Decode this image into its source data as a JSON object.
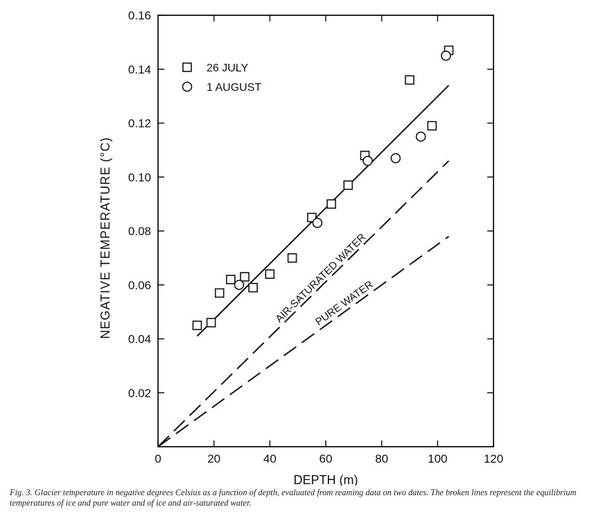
{
  "chart_data": {
    "type": "scatter",
    "title": "",
    "xlabel": "DEPTH (m)",
    "ylabel": "NEGATIVE TEMPERATURE (°C)",
    "xlim": [
      0,
      120
    ],
    "ylim": [
      0,
      0.16
    ],
    "xticks": [
      0,
      20,
      40,
      60,
      80,
      100,
      120
    ],
    "yticks": [
      0.02,
      0.04,
      0.06,
      0.08,
      0.1,
      0.12,
      0.14,
      0.16
    ],
    "ytick_labels": [
      "0.02",
      "0.04",
      "0.06",
      "0.08",
      "0.10",
      "0.12",
      "0.14",
      "0.16"
    ],
    "grid": false,
    "legend_position": "top-left",
    "series": [
      {
        "name": "26 JULY",
        "marker": "square",
        "points": [
          [
            14,
            0.045
          ],
          [
            19,
            0.046
          ],
          [
            22,
            0.057
          ],
          [
            26,
            0.062
          ],
          [
            31,
            0.063
          ],
          [
            34,
            0.059
          ],
          [
            40,
            0.064
          ],
          [
            48,
            0.07
          ],
          [
            55,
            0.085
          ],
          [
            62,
            0.09
          ],
          [
            68,
            0.097
          ],
          [
            74,
            0.108
          ],
          [
            90,
            0.136
          ],
          [
            98,
            0.119
          ],
          [
            104,
            0.147
          ]
        ]
      },
      {
        "name": "1 AUGUST",
        "marker": "circle",
        "points": [
          [
            29,
            0.06
          ],
          [
            57,
            0.083
          ],
          [
            75,
            0.106
          ],
          [
            85,
            0.107
          ],
          [
            94,
            0.115
          ],
          [
            103,
            0.145
          ]
        ]
      }
    ],
    "lines": [
      {
        "style": "solid",
        "from": [
          14,
          0.041
        ],
        "to": [
          104,
          0.134
        ]
      },
      {
        "style": "dashed",
        "label": "AIR-SATURATED WATER",
        "from": [
          0,
          0
        ],
        "to": [
          104,
          0.106
        ]
      },
      {
        "style": "dashed",
        "label": "PURE WATER",
        "from": [
          0,
          0
        ],
        "to": [
          104,
          0.078
        ]
      }
    ]
  },
  "caption": {
    "fig_label": "Fig. 3.",
    "text": "Glacier temperature in negative degrees Celsius as a function of depth, evaluated from reaming data on two dates. The broken lines represent the equilibrium temperatures of ice and pure water and of ice and air-saturated water."
  }
}
